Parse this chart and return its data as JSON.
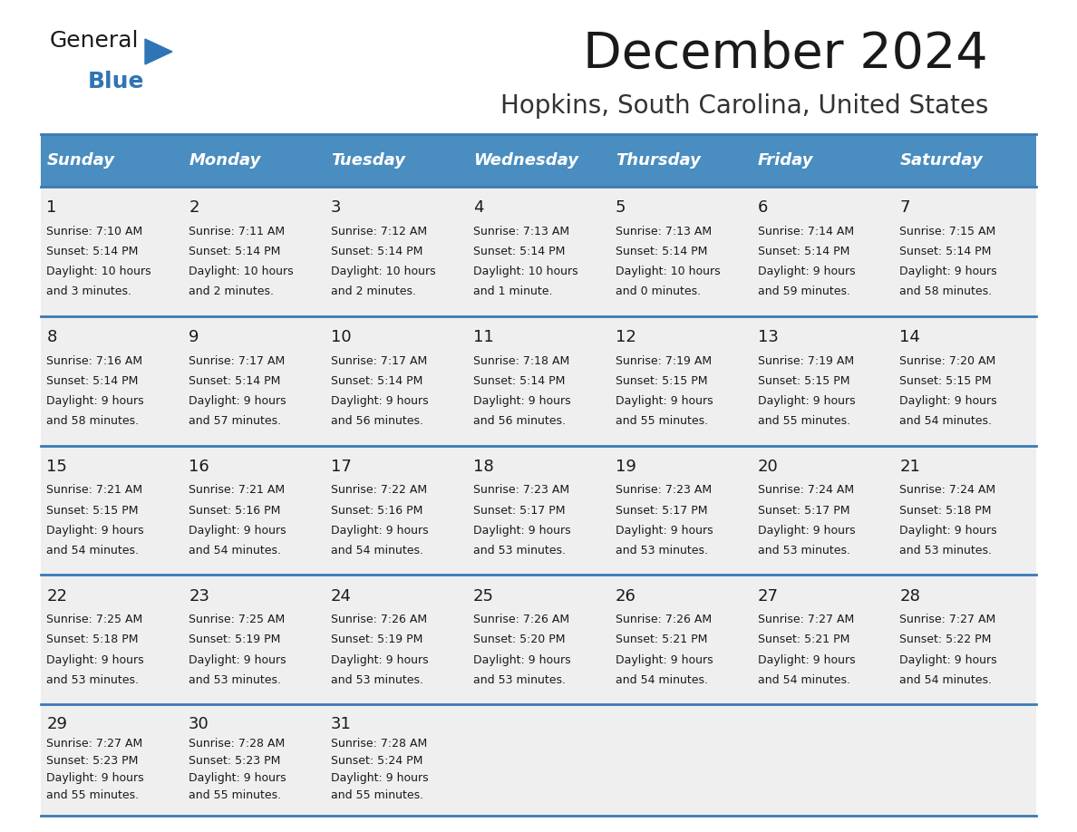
{
  "title": "December 2024",
  "subtitle": "Hopkins, South Carolina, United States",
  "header_color": "#4A8DC0",
  "header_text_color": "#FFFFFF",
  "border_color": "#3A7AB5",
  "cell_bg": "#EFEFEF",
  "title_color": "#1a1a1a",
  "subtitle_color": "#333333",
  "days_of_week": [
    "Sunday",
    "Monday",
    "Tuesday",
    "Wednesday",
    "Thursday",
    "Friday",
    "Saturday"
  ],
  "weeks": [
    [
      {
        "day": 1,
        "sunrise": "7:10 AM",
        "sunset": "5:14 PM",
        "daylight_line1": "Daylight: 10 hours",
        "daylight_line2": "and 3 minutes."
      },
      {
        "day": 2,
        "sunrise": "7:11 AM",
        "sunset": "5:14 PM",
        "daylight_line1": "Daylight: 10 hours",
        "daylight_line2": "and 2 minutes."
      },
      {
        "day": 3,
        "sunrise": "7:12 AM",
        "sunset": "5:14 PM",
        "daylight_line1": "Daylight: 10 hours",
        "daylight_line2": "and 2 minutes."
      },
      {
        "day": 4,
        "sunrise": "7:13 AM",
        "sunset": "5:14 PM",
        "daylight_line1": "Daylight: 10 hours",
        "daylight_line2": "and 1 minute."
      },
      {
        "day": 5,
        "sunrise": "7:13 AM",
        "sunset": "5:14 PM",
        "daylight_line1": "Daylight: 10 hours",
        "daylight_line2": "and 0 minutes."
      },
      {
        "day": 6,
        "sunrise": "7:14 AM",
        "sunset": "5:14 PM",
        "daylight_line1": "Daylight: 9 hours",
        "daylight_line2": "and 59 minutes."
      },
      {
        "day": 7,
        "sunrise": "7:15 AM",
        "sunset": "5:14 PM",
        "daylight_line1": "Daylight: 9 hours",
        "daylight_line2": "and 58 minutes."
      }
    ],
    [
      {
        "day": 8,
        "sunrise": "7:16 AM",
        "sunset": "5:14 PM",
        "daylight_line1": "Daylight: 9 hours",
        "daylight_line2": "and 58 minutes."
      },
      {
        "day": 9,
        "sunrise": "7:17 AM",
        "sunset": "5:14 PM",
        "daylight_line1": "Daylight: 9 hours",
        "daylight_line2": "and 57 minutes."
      },
      {
        "day": 10,
        "sunrise": "7:17 AM",
        "sunset": "5:14 PM",
        "daylight_line1": "Daylight: 9 hours",
        "daylight_line2": "and 56 minutes."
      },
      {
        "day": 11,
        "sunrise": "7:18 AM",
        "sunset": "5:14 PM",
        "daylight_line1": "Daylight: 9 hours",
        "daylight_line2": "and 56 minutes."
      },
      {
        "day": 12,
        "sunrise": "7:19 AM",
        "sunset": "5:15 PM",
        "daylight_line1": "Daylight: 9 hours",
        "daylight_line2": "and 55 minutes."
      },
      {
        "day": 13,
        "sunrise": "7:19 AM",
        "sunset": "5:15 PM",
        "daylight_line1": "Daylight: 9 hours",
        "daylight_line2": "and 55 minutes."
      },
      {
        "day": 14,
        "sunrise": "7:20 AM",
        "sunset": "5:15 PM",
        "daylight_line1": "Daylight: 9 hours",
        "daylight_line2": "and 54 minutes."
      }
    ],
    [
      {
        "day": 15,
        "sunrise": "7:21 AM",
        "sunset": "5:15 PM",
        "daylight_line1": "Daylight: 9 hours",
        "daylight_line2": "and 54 minutes."
      },
      {
        "day": 16,
        "sunrise": "7:21 AM",
        "sunset": "5:16 PM",
        "daylight_line1": "Daylight: 9 hours",
        "daylight_line2": "and 54 minutes."
      },
      {
        "day": 17,
        "sunrise": "7:22 AM",
        "sunset": "5:16 PM",
        "daylight_line1": "Daylight: 9 hours",
        "daylight_line2": "and 54 minutes."
      },
      {
        "day": 18,
        "sunrise": "7:23 AM",
        "sunset": "5:17 PM",
        "daylight_line1": "Daylight: 9 hours",
        "daylight_line2": "and 53 minutes."
      },
      {
        "day": 19,
        "sunrise": "7:23 AM",
        "sunset": "5:17 PM",
        "daylight_line1": "Daylight: 9 hours",
        "daylight_line2": "and 53 minutes."
      },
      {
        "day": 20,
        "sunrise": "7:24 AM",
        "sunset": "5:17 PM",
        "daylight_line1": "Daylight: 9 hours",
        "daylight_line2": "and 53 minutes."
      },
      {
        "day": 21,
        "sunrise": "7:24 AM",
        "sunset": "5:18 PM",
        "daylight_line1": "Daylight: 9 hours",
        "daylight_line2": "and 53 minutes."
      }
    ],
    [
      {
        "day": 22,
        "sunrise": "7:25 AM",
        "sunset": "5:18 PM",
        "daylight_line1": "Daylight: 9 hours",
        "daylight_line2": "and 53 minutes."
      },
      {
        "day": 23,
        "sunrise": "7:25 AM",
        "sunset": "5:19 PM",
        "daylight_line1": "Daylight: 9 hours",
        "daylight_line2": "and 53 minutes."
      },
      {
        "day": 24,
        "sunrise": "7:26 AM",
        "sunset": "5:19 PM",
        "daylight_line1": "Daylight: 9 hours",
        "daylight_line2": "and 53 minutes."
      },
      {
        "day": 25,
        "sunrise": "7:26 AM",
        "sunset": "5:20 PM",
        "daylight_line1": "Daylight: 9 hours",
        "daylight_line2": "and 53 minutes."
      },
      {
        "day": 26,
        "sunrise": "7:26 AM",
        "sunset": "5:21 PM",
        "daylight_line1": "Daylight: 9 hours",
        "daylight_line2": "and 54 minutes."
      },
      {
        "day": 27,
        "sunrise": "7:27 AM",
        "sunset": "5:21 PM",
        "daylight_line1": "Daylight: 9 hours",
        "daylight_line2": "and 54 minutes."
      },
      {
        "day": 28,
        "sunrise": "7:27 AM",
        "sunset": "5:22 PM",
        "daylight_line1": "Daylight: 9 hours",
        "daylight_line2": "and 54 minutes."
      }
    ],
    [
      {
        "day": 29,
        "sunrise": "7:27 AM",
        "sunset": "5:23 PM",
        "daylight_line1": "Daylight: 9 hours",
        "daylight_line2": "and 55 minutes."
      },
      {
        "day": 30,
        "sunrise": "7:28 AM",
        "sunset": "5:23 PM",
        "daylight_line1": "Daylight: 9 hours",
        "daylight_line2": "and 55 minutes."
      },
      {
        "day": 31,
        "sunrise": "7:28 AM",
        "sunset": "5:24 PM",
        "daylight_line1": "Daylight: 9 hours",
        "daylight_line2": "and 55 minutes."
      },
      null,
      null,
      null,
      null
    ]
  ],
  "logo_triangle_color": "#2E75B6",
  "logo_blue_color": "#2E75B6",
  "logo_general_color": "#1a1a1a"
}
